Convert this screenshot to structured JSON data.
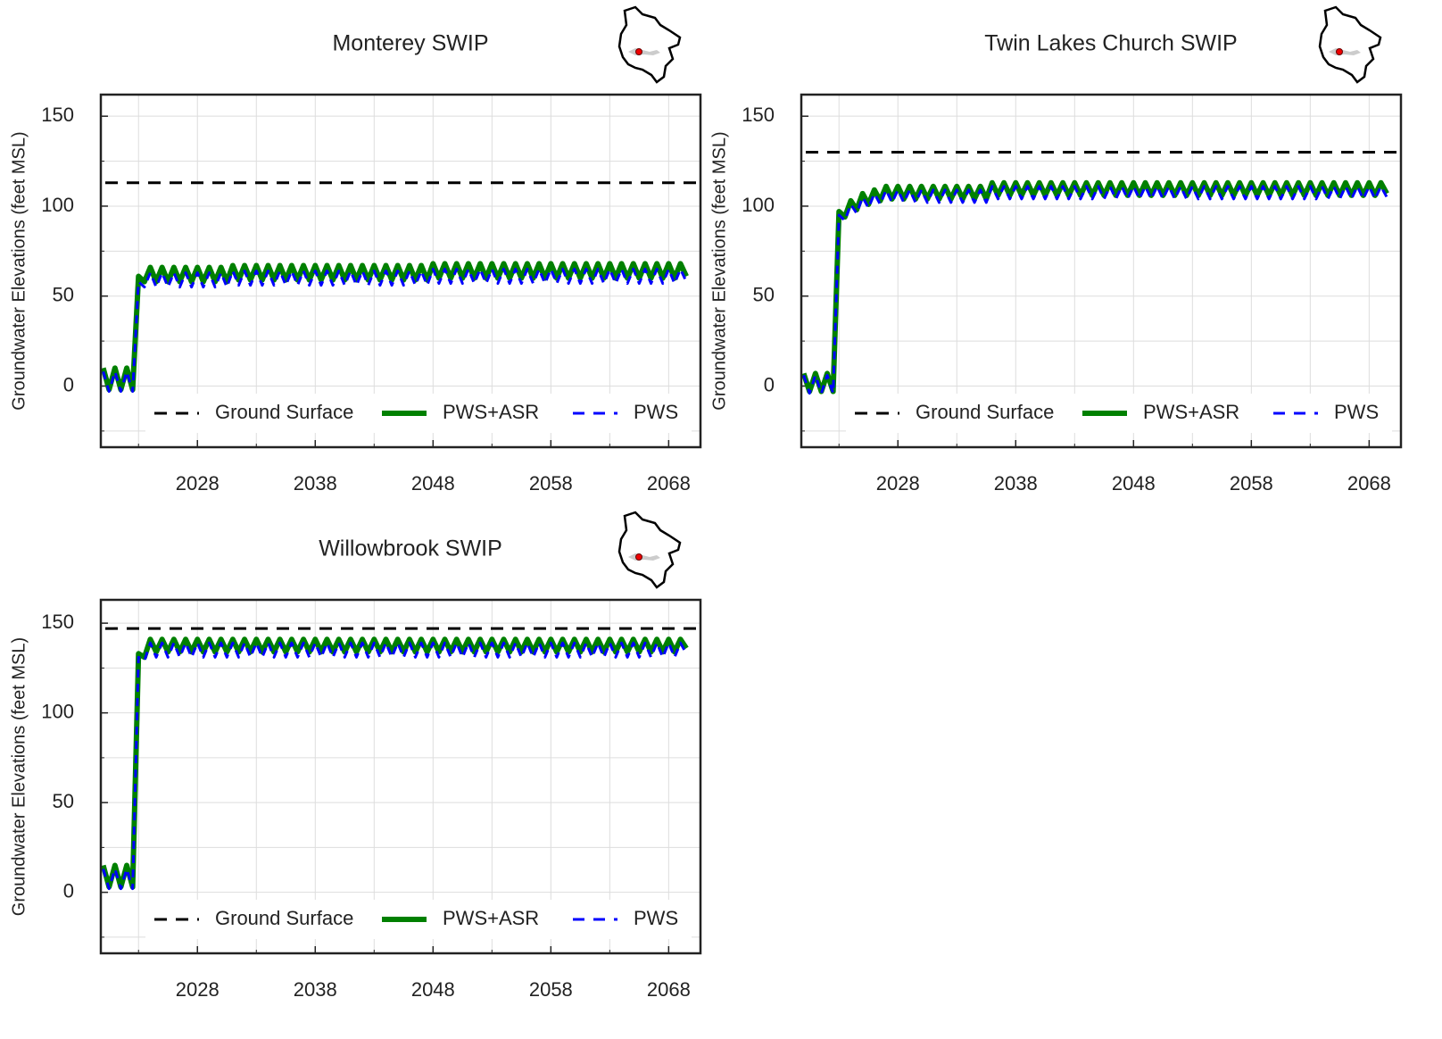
{
  "chart_data": [
    {
      "type": "line",
      "title": "Monterey SWIP",
      "ylabel": "Groundwater Elevations (feet MSL)",
      "xlim": [
        2019.8,
        2070.7
      ],
      "xticks": [
        2028,
        2038,
        2048,
        2058,
        2068
      ],
      "xminor": [
        2023,
        2033,
        2043,
        2053,
        2063
      ],
      "ylim": [
        -34,
        162
      ],
      "yticks": [
        0,
        50,
        100,
        150
      ],
      "yminor": [
        -25,
        25,
        75,
        125
      ],
      "grid": true,
      "legend": "lower center",
      "reference_line": {
        "name": "Ground Surface",
        "value": 113,
        "color": "#000000",
        "linestyle": "dashed"
      },
      "x": [
        2020,
        2020.5,
        2021,
        2021.5,
        2022,
        2022.5,
        2023,
        2023.5,
        2024,
        2024.5,
        2025,
        2025.5,
        2026,
        2026.5,
        2027,
        2027.5,
        2028,
        2028.5,
        2029,
        2029.5,
        2030,
        2030.5,
        2031,
        2031.5,
        2032,
        2032.5,
        2033,
        2033.5,
        2034,
        2034.5,
        2035,
        2035.5,
        2036,
        2036.5,
        2037,
        2037.5,
        2038,
        2038.5,
        2039,
        2039.5,
        2040,
        2040.5,
        2041,
        2041.5,
        2042,
        2042.5,
        2043,
        2043.5,
        2044,
        2044.5,
        2045,
        2045.5,
        2046,
        2046.5,
        2047,
        2047.5,
        2048,
        2048.5,
        2049,
        2049.5,
        2050,
        2050.5,
        2051,
        2051.5,
        2052,
        2052.5,
        2053,
        2053.5,
        2054,
        2054.5,
        2055,
        2055.5,
        2056,
        2056.5,
        2057,
        2057.5,
        2058,
        2058.5,
        2059,
        2059.5,
        2060,
        2060.5,
        2061,
        2061.5,
        2062,
        2062.5,
        2063,
        2063.5,
        2064,
        2064.5,
        2065,
        2065.5,
        2066,
        2066.5,
        2067,
        2067.5,
        2068,
        2068.5,
        2069,
        2069.5
      ],
      "series": [
        {
          "name": "PWS+ASR",
          "color": "#008000",
          "linestyle": "solid",
          "values": [
            10,
            -2,
            10,
            -2,
            10,
            -2,
            61,
            58,
            66,
            58,
            66,
            58,
            66,
            58,
            66,
            58,
            66,
            58,
            66,
            58,
            66,
            58,
            67,
            59,
            67,
            59,
            67,
            59,
            67,
            59,
            67,
            59,
            67,
            59,
            67,
            59,
            67,
            59,
            67,
            59,
            67,
            59,
            67,
            59,
            67,
            59,
            67,
            59,
            67,
            59,
            67,
            59,
            67,
            59,
            67,
            59,
            68,
            60,
            68,
            60,
            68,
            60,
            68,
            60,
            68,
            60,
            68,
            60,
            68,
            60,
            68,
            60,
            68,
            60,
            68,
            60,
            68,
            60,
            68,
            60,
            68,
            60,
            68,
            60,
            68,
            60,
            68,
            60,
            68,
            60,
            68,
            60,
            68,
            60,
            68,
            60,
            68,
            60,
            68,
            61
          ]
        },
        {
          "name": "PWS",
          "color": "#0000ff",
          "linestyle": "dashed",
          "values": [
            8,
            -3,
            8,
            -3,
            8,
            -3,
            58,
            55,
            63,
            55,
            63,
            55,
            63,
            55,
            63,
            55,
            63,
            55,
            63,
            55,
            63,
            55,
            64,
            56,
            64,
            56,
            64,
            56,
            64,
            56,
            64,
            56,
            64,
            56,
            64,
            56,
            64,
            56,
            64,
            56,
            64,
            56,
            64,
            56,
            64,
            56,
            64,
            56,
            64,
            56,
            64,
            56,
            64,
            56,
            64,
            56,
            65,
            57,
            65,
            57,
            65,
            57,
            65,
            57,
            65,
            57,
            65,
            57,
            65,
            57,
            65,
            57,
            65,
            57,
            65,
            57,
            65,
            57,
            65,
            57,
            65,
            57,
            65,
            57,
            65,
            57,
            65,
            57,
            65,
            57,
            65,
            57,
            65,
            57,
            65,
            57,
            65,
            57,
            65,
            58
          ]
        }
      ]
    },
    {
      "type": "line",
      "title": "Twin Lakes Church SWIP",
      "ylabel": "Groundwater Elevations (feet MSL)",
      "xlim": [
        2019.8,
        2070.7
      ],
      "xticks": [
        2028,
        2038,
        2048,
        2058,
        2068
      ],
      "xminor": [
        2023,
        2033,
        2043,
        2053,
        2063
      ],
      "ylim": [
        -34,
        162
      ],
      "yticks": [
        0,
        50,
        100,
        150
      ],
      "yminor": [
        -25,
        25,
        75,
        125
      ],
      "grid": true,
      "legend": "lower center",
      "reference_line": {
        "name": "Ground Surface",
        "value": 130,
        "color": "#000000",
        "linestyle": "dashed"
      },
      "x": [
        2020,
        2020.5,
        2021,
        2021.5,
        2022,
        2022.5,
        2023,
        2023.5,
        2024,
        2024.5,
        2025,
        2025.5,
        2026,
        2026.5,
        2027,
        2027.5,
        2028,
        2028.5,
        2029,
        2029.5,
        2030,
        2030.5,
        2031,
        2031.5,
        2032,
        2032.5,
        2033,
        2033.5,
        2034,
        2034.5,
        2035,
        2035.5,
        2036,
        2036.5,
        2037,
        2037.5,
        2038,
        2038.5,
        2039,
        2039.5,
        2040,
        2040.5,
        2041,
        2041.5,
        2042,
        2042.5,
        2043,
        2043.5,
        2044,
        2044.5,
        2045,
        2045.5,
        2046,
        2046.5,
        2047,
        2047.5,
        2048,
        2048.5,
        2049,
        2049.5,
        2050,
        2050.5,
        2051,
        2051.5,
        2052,
        2052.5,
        2053,
        2053.5,
        2054,
        2054.5,
        2055,
        2055.5,
        2056,
        2056.5,
        2057,
        2057.5,
        2058,
        2058.5,
        2059,
        2059.5,
        2060,
        2060.5,
        2061,
        2061.5,
        2062,
        2062.5,
        2063,
        2063.5,
        2064,
        2064.5,
        2065,
        2065.5,
        2066,
        2066.5,
        2067,
        2067.5,
        2068,
        2068.5,
        2069,
        2069.5
      ],
      "series": [
        {
          "name": "PWS+ASR",
          "color": "#008000",
          "linestyle": "solid",
          "values": [
            7,
            -3,
            7,
            -3,
            7,
            -3,
            97,
            94,
            103,
            98,
            107,
            101,
            109,
            103,
            111,
            104,
            111,
            104,
            111,
            104,
            111,
            104,
            111,
            104,
            111,
            104,
            111,
            104,
            111,
            104,
            111,
            104,
            113,
            106,
            113,
            106,
            113,
            106,
            113,
            106,
            113,
            106,
            113,
            106,
            113,
            106,
            113,
            106,
            113,
            106,
            113,
            106,
            113,
            106,
            113,
            106,
            113,
            106,
            113,
            106,
            113,
            106,
            113,
            106,
            113,
            106,
            113,
            106,
            113,
            106,
            113,
            106,
            113,
            106,
            113,
            106,
            113,
            106,
            113,
            106,
            113,
            106,
            113,
            106,
            113,
            106,
            113,
            106,
            113,
            106,
            113,
            106,
            113,
            106,
            113,
            106,
            113,
            106,
            113,
            107
          ]
        },
        {
          "name": "PWS",
          "color": "#0000ff",
          "linestyle": "dashed",
          "values": [
            6,
            -4,
            6,
            -4,
            6,
            -4,
            95,
            92,
            101,
            96,
            105,
            99,
            107,
            101,
            109,
            102,
            109,
            102,
            109,
            102,
            109,
            102,
            109,
            102,
            109,
            102,
            109,
            102,
            109,
            102,
            109,
            102,
            111,
            104,
            111,
            104,
            111,
            104,
            111,
            104,
            111,
            104,
            111,
            104,
            111,
            104,
            111,
            104,
            111,
            104,
            111,
            104,
            111,
            104,
            111,
            104,
            111,
            104,
            111,
            104,
            111,
            104,
            111,
            104,
            111,
            104,
            111,
            104,
            111,
            104,
            111,
            104,
            111,
            104,
            111,
            104,
            111,
            104,
            111,
            104,
            111,
            104,
            111,
            104,
            111,
            104,
            111,
            104,
            111,
            104,
            111,
            104,
            111,
            104,
            111,
            104,
            111,
            104,
            111,
            105
          ]
        }
      ]
    },
    {
      "type": "line",
      "title": "Willowbrook SWIP",
      "ylabel": "Groundwater Elevations (feet MSL)",
      "xlim": [
        2019.8,
        2070.7
      ],
      "xticks": [
        2028,
        2038,
        2048,
        2058,
        2068
      ],
      "xminor": [
        2023,
        2033,
        2043,
        2053,
        2063
      ],
      "ylim": [
        -34,
        163
      ],
      "yticks": [
        0,
        50,
        100,
        150
      ],
      "yminor": [
        -25,
        25,
        75,
        125
      ],
      "grid": true,
      "legend": "lower center",
      "reference_line": {
        "name": "Ground Surface",
        "value": 147,
        "color": "#000000",
        "linestyle": "dashed"
      },
      "x": [
        2020,
        2020.5,
        2021,
        2021.5,
        2022,
        2022.5,
        2023,
        2023.5,
        2024,
        2024.5,
        2025,
        2025.5,
        2026,
        2026.5,
        2027,
        2027.5,
        2028,
        2028.5,
        2029,
        2029.5,
        2030,
        2030.5,
        2031,
        2031.5,
        2032,
        2032.5,
        2033,
        2033.5,
        2034,
        2034.5,
        2035,
        2035.5,
        2036,
        2036.5,
        2037,
        2037.5,
        2038,
        2038.5,
        2039,
        2039.5,
        2040,
        2040.5,
        2041,
        2041.5,
        2042,
        2042.5,
        2043,
        2043.5,
        2044,
        2044.5,
        2045,
        2045.5,
        2046,
        2046.5,
        2047,
        2047.5,
        2048,
        2048.5,
        2049,
        2049.5,
        2050,
        2050.5,
        2051,
        2051.5,
        2052,
        2052.5,
        2053,
        2053.5,
        2054,
        2054.5,
        2055,
        2055.5,
        2056,
        2056.5,
        2057,
        2057.5,
        2058,
        2058.5,
        2059,
        2059.5,
        2060,
        2060.5,
        2061,
        2061.5,
        2062,
        2062.5,
        2063,
        2063.5,
        2064,
        2064.5,
        2065,
        2065.5,
        2066,
        2066.5,
        2067,
        2067.5,
        2068,
        2068.5,
        2069,
        2069.5
      ],
      "series": [
        {
          "name": "PWS+ASR",
          "color": "#008000",
          "linestyle": "solid",
          "values": [
            15,
            3,
            15,
            3,
            15,
            3,
            133,
            131,
            141,
            134,
            141,
            134,
            141,
            134,
            141,
            134,
            141,
            134,
            141,
            134,
            141,
            134,
            141,
            134,
            141,
            134,
            141,
            134,
            141,
            134,
            141,
            134,
            141,
            134,
            141,
            134,
            141,
            134,
            141,
            134,
            141,
            134,
            141,
            134,
            141,
            134,
            141,
            134,
            141,
            134,
            141,
            134,
            141,
            134,
            141,
            134,
            141,
            134,
            141,
            134,
            141,
            134,
            141,
            134,
            141,
            134,
            141,
            134,
            141,
            134,
            141,
            134,
            141,
            134,
            141,
            134,
            141,
            134,
            141,
            134,
            141,
            134,
            141,
            134,
            141,
            134,
            141,
            134,
            141,
            134,
            141,
            134,
            141,
            134,
            141,
            134,
            141,
            134,
            141,
            136
          ]
        },
        {
          "name": "PWS",
          "color": "#0000ff",
          "linestyle": "dashed",
          "values": [
            13,
            2,
            13,
            2,
            13,
            2,
            131,
            129,
            139,
            131,
            139,
            131,
            139,
            131,
            139,
            131,
            139,
            131,
            139,
            131,
            139,
            131,
            139,
            131,
            139,
            131,
            139,
            131,
            139,
            131,
            139,
            131,
            139,
            131,
            139,
            131,
            139,
            131,
            139,
            131,
            139,
            131,
            139,
            131,
            139,
            131,
            139,
            131,
            139,
            131,
            139,
            131,
            139,
            131,
            139,
            131,
            139,
            131,
            139,
            131,
            139,
            131,
            139,
            131,
            139,
            131,
            139,
            131,
            139,
            131,
            139,
            131,
            139,
            131,
            139,
            131,
            139,
            131,
            139,
            131,
            139,
            131,
            139,
            131,
            139,
            131,
            139,
            131,
            139,
            131,
            139,
            131,
            139,
            131,
            139,
            131,
            139,
            131,
            139,
            133
          ]
        }
      ]
    }
  ]
}
